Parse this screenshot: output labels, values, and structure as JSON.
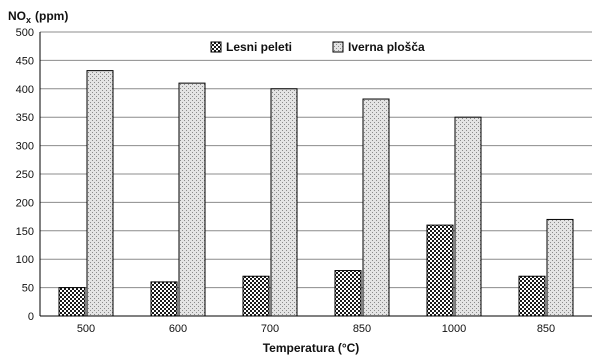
{
  "chart_data": {
    "type": "bar",
    "categories": [
      "500",
      "600",
      "700",
      "850",
      "1000",
      "850"
    ],
    "series": [
      {
        "name": "Lesni peleti",
        "values": [
          50,
          60,
          70,
          80,
          160,
          70
        ],
        "pattern": "checker"
      },
      {
        "name": "Iverna plošča",
        "values": [
          432,
          410,
          400,
          382,
          350,
          170
        ],
        "pattern": "dots"
      }
    ],
    "ylabel_main": "NO",
    "ylabel_sub": "x",
    "ylabel_unit": "(ppm)",
    "xlabel": "Temperatura (°C)",
    "ylim": [
      0,
      500
    ],
    "yticks": [
      "0",
      "50",
      "100",
      "150",
      "200",
      "250",
      "300",
      "350",
      "400",
      "450",
      "500"
    ],
    "grid": true,
    "legend_position": "top-center"
  }
}
